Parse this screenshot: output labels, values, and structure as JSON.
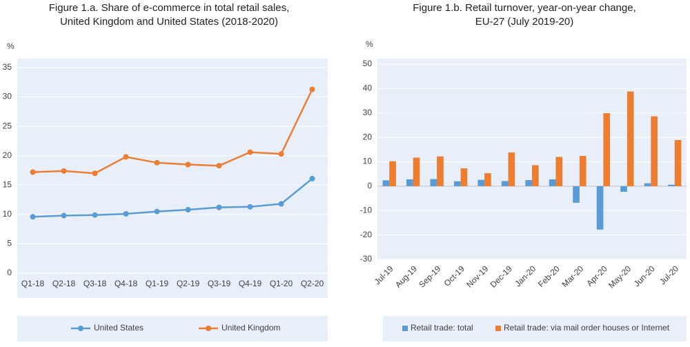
{
  "chart_data": [
    {
      "type": "line",
      "title": [
        "Figure 1.a. Share of e-commerce in total retail sales,",
        "United Kingdom and United States  (2018-2020)"
      ],
      "y_label": "%",
      "categories": [
        "Q1-18",
        "Q2-18",
        "Q3-18",
        "Q4-18",
        "Q1-19",
        "Q2-19",
        "Q3-19",
        "Q4-19",
        "Q1-20",
        "Q2-20"
      ],
      "series": [
        {
          "name": "United States",
          "color": "#5b9bd5",
          "values": [
            9.6,
            9.8,
            9.9,
            10.1,
            10.5,
            10.8,
            11.2,
            11.3,
            11.8,
            16.1
          ]
        },
        {
          "name": "United Kingdom",
          "color": "#ed7d31",
          "values": [
            17.2,
            17.4,
            17.0,
            19.8,
            18.8,
            18.5,
            18.3,
            20.6,
            20.3,
            31.3
          ]
        }
      ],
      "ylim": [
        0,
        35
      ],
      "yticks": [
        0,
        5,
        10,
        15,
        20,
        25,
        30,
        35
      ],
      "grid": true,
      "legend": "bottom"
    },
    {
      "type": "bar",
      "title": [
        "Figure 1.b. Retail turnover, year-on-year change,",
        "EU-27 (July 2019-20)"
      ],
      "y_label": "%",
      "categories": [
        "Jul-19",
        "Aug-19",
        "Sep-19",
        "Oct-19",
        "Nov-19",
        "Dec-19",
        "Jan-20",
        "Feb-20",
        "Mar-20",
        "Apr-20",
        "May-20",
        "Jun-20",
        "Jul-20"
      ],
      "series": [
        {
          "name": "Retail trade: total",
          "color": "#5b9bd5",
          "values": [
            2.4,
            2.8,
            2.9,
            2.0,
            2.6,
            2.1,
            2.5,
            2.8,
            -6.8,
            -17.8,
            -2.3,
            1.2,
            0.6
          ]
        },
        {
          "name": "Retail trade: via mail order houses or Internet",
          "color": "#ed7d31",
          "values": [
            10.2,
            11.7,
            12.2,
            7.3,
            5.3,
            13.8,
            8.6,
            12.0,
            12.4,
            29.9,
            38.8,
            28.6,
            18.9
          ]
        }
      ],
      "ylim": [
        -30,
        50
      ],
      "yticks": [
        -30,
        -20,
        -10,
        0,
        10,
        20,
        30,
        40,
        50
      ],
      "grid": true,
      "legend": "bottom"
    }
  ]
}
